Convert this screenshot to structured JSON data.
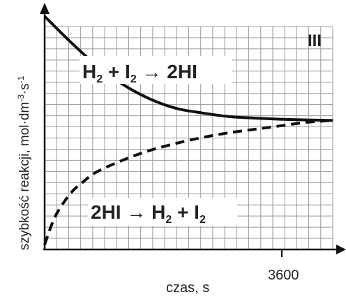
{
  "chart_data": {
    "type": "line",
    "panel_label": "III",
    "xlabel": "czas, s",
    "ylabel_main": "szybkość reakcji, mol·dm",
    "ylabel_exp1": "-3",
    "ylabel_mid": "·s",
    "ylabel_exp2": "-1",
    "x_tick_labels": [
      {
        "value": 3600,
        "label": "3600"
      }
    ],
    "xlim": [
      0,
      4400
    ],
    "ylim": [
      0,
      1.0
    ],
    "grid": true,
    "series": [
      {
        "name": "H₂ + I₂ → 2HI",
        "style": "solid",
        "x": [
          0,
          400,
          800,
          1200,
          1600,
          2000,
          2400,
          2800,
          3200,
          3600,
          4000,
          4400
        ],
        "y": [
          0.99,
          0.88,
          0.78,
          0.7,
          0.64,
          0.6,
          0.58,
          0.565,
          0.558,
          0.553,
          0.55,
          0.548
        ]
      },
      {
        "name": "2HI → H₂ + I₂",
        "style": "dashed",
        "x": [
          0,
          100,
          200,
          400,
          600,
          800,
          1200,
          1600,
          2000,
          2400,
          2800,
          3200,
          3600,
          4000,
          4400
        ],
        "y": [
          0.02,
          0.1,
          0.16,
          0.24,
          0.29,
          0.33,
          0.38,
          0.42,
          0.45,
          0.475,
          0.495,
          0.51,
          0.525,
          0.54,
          0.548
        ]
      }
    ],
    "annotations": {
      "top": {
        "left": "H",
        "sub1": "2",
        "mid": " + I",
        "sub2": "2",
        "right": " → 2HI"
      },
      "bottom": {
        "left": "2HI → H",
        "sub1": "2",
        "mid": " + I",
        "sub2": "2"
      }
    },
    "colors": {
      "line": "#111111",
      "grid": "#9a9a9a",
      "axis": "#111111"
    }
  }
}
